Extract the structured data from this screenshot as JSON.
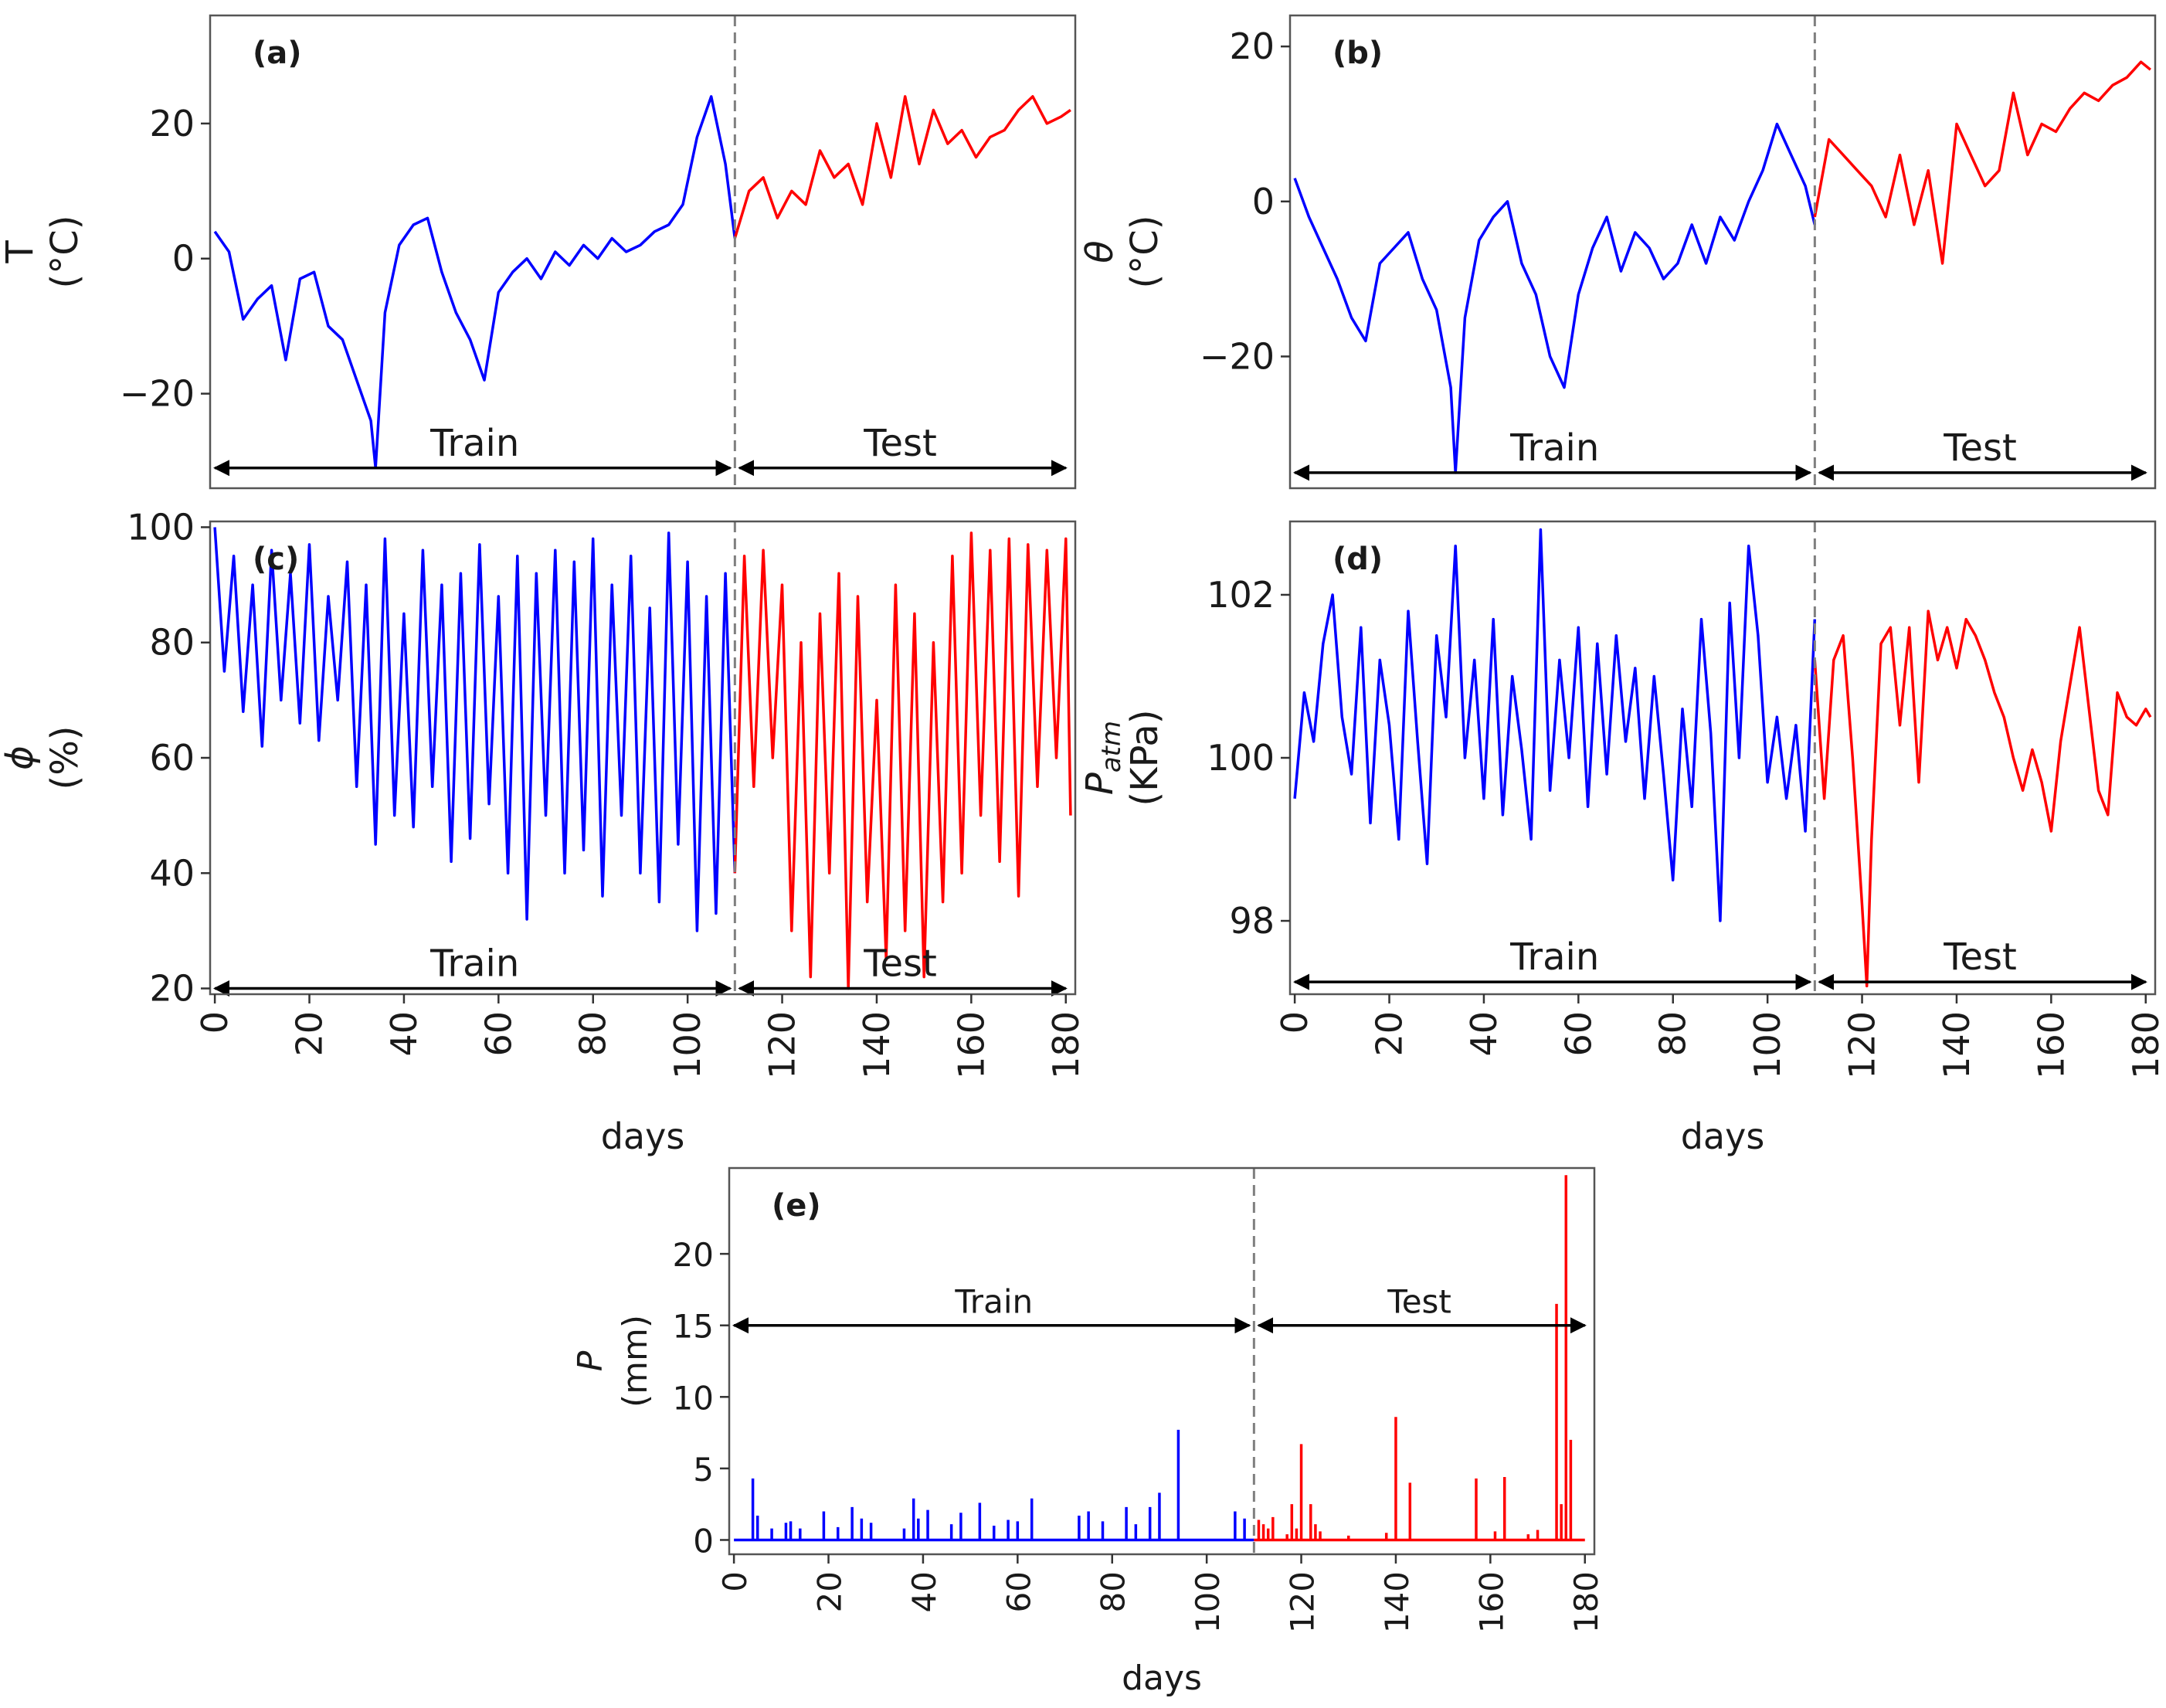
{
  "figure": {
    "colors": {
      "train": "#0000ff",
      "test": "#ff0000",
      "axis": "#555555",
      "split": "#7f7f7f",
      "arrow": "#000000"
    },
    "train_text": "Train",
    "test_text": "Test",
    "days_label": "days"
  },
  "chart_data": [
    {
      "id": "a",
      "tag": "(a)",
      "type": "line",
      "ylabel": "T",
      "yunit": "(°C)",
      "xlabel": "",
      "xlim": [
        -1,
        182
      ],
      "ylim": [
        -34,
        36
      ],
      "yticks": [
        -20,
        0,
        20
      ],
      "ytick_labels": [
        "−20",
        "0",
        "20"
      ],
      "xticks": [
        0,
        20,
        40,
        60,
        80,
        100,
        120,
        140,
        160,
        180
      ],
      "split_day": 110,
      "arrow_y": -31,
      "series": [
        {
          "name": "Train",
          "x": [
            0,
            3,
            6,
            9,
            12,
            15,
            18,
            21,
            24,
            27,
            30,
            33,
            34,
            36,
            39,
            42,
            45,
            48,
            51,
            54,
            57,
            60,
            63,
            66,
            69,
            72,
            75,
            78,
            81,
            84,
            87,
            90,
            93,
            96,
            99,
            102,
            105,
            108,
            110
          ],
          "values": [
            4,
            1,
            -9,
            -6,
            -4,
            -15,
            -3,
            -2,
            -10,
            -12,
            -18,
            -24,
            -31,
            -8,
            2,
            5,
            6,
            -2,
            -8,
            -12,
            -18,
            -5,
            -2,
            0,
            -3,
            1,
            -1,
            2,
            0,
            3,
            1,
            2,
            4,
            5,
            8,
            18,
            24,
            14,
            3
          ]
        },
        {
          "name": "Test",
          "x": [
            110,
            113,
            116,
            119,
            122,
            125,
            128,
            131,
            134,
            137,
            140,
            143,
            146,
            149,
            152,
            155,
            158,
            161,
            164,
            167,
            170,
            173,
            176,
            179,
            181
          ],
          "values": [
            3,
            10,
            12,
            6,
            10,
            8,
            16,
            12,
            14,
            8,
            20,
            12,
            24,
            14,
            22,
            17,
            19,
            15,
            18,
            19,
            22,
            24,
            20,
            21,
            22
          ]
        }
      ]
    },
    {
      "id": "b",
      "tag": "(b)",
      "type": "line",
      "ylabel": "θ",
      "yunit": "(°C)",
      "xlabel": "",
      "xlim": [
        -1,
        182
      ],
      "ylim": [
        -37,
        24
      ],
      "yticks": [
        -20,
        0,
        20
      ],
      "ytick_labels": [
        "−20",
        "0",
        "20"
      ],
      "xticks": [
        0,
        20,
        40,
        60,
        80,
        100,
        120,
        140,
        160,
        180
      ],
      "split_day": 110,
      "arrow_y": -35,
      "series": [
        {
          "name": "Train",
          "x": [
            0,
            3,
            6,
            9,
            12,
            15,
            18,
            21,
            24,
            27,
            30,
            33,
            34,
            36,
            39,
            42,
            45,
            48,
            51,
            54,
            57,
            60,
            63,
            66,
            69,
            72,
            75,
            78,
            81,
            84,
            87,
            90,
            93,
            96,
            99,
            102,
            105,
            108,
            110
          ],
          "values": [
            3,
            -2,
            -6,
            -10,
            -15,
            -18,
            -8,
            -6,
            -4,
            -10,
            -14,
            -24,
            -35,
            -15,
            -5,
            -2,
            0,
            -8,
            -12,
            -20,
            -24,
            -12,
            -6,
            -2,
            -9,
            -4,
            -6,
            -10,
            -8,
            -3,
            -8,
            -2,
            -5,
            0,
            4,
            10,
            6,
            2,
            -3
          ]
        },
        {
          "name": "Test",
          "x": [
            110,
            113,
            116,
            119,
            122,
            125,
            128,
            131,
            134,
            137,
            140,
            143,
            146,
            149,
            152,
            155,
            158,
            161,
            164,
            167,
            170,
            173,
            176,
            179,
            181
          ],
          "values": [
            -2,
            8,
            6,
            4,
            2,
            -2,
            6,
            -3,
            4,
            -8,
            10,
            6,
            2,
            4,
            14,
            6,
            10,
            9,
            12,
            14,
            13,
            15,
            16,
            18,
            17
          ]
        }
      ]
    },
    {
      "id": "c",
      "tag": "(c)",
      "type": "line",
      "ylabel": "ϕ",
      "yunit": "(%)",
      "xlabel": "days",
      "xlim": [
        -1,
        182
      ],
      "ylim": [
        19,
        101
      ],
      "yticks": [
        20,
        40,
        60,
        80,
        100
      ],
      "ytick_labels": [
        "20",
        "40",
        "60",
        "80",
        "100"
      ],
      "xticks": [
        0,
        20,
        40,
        60,
        80,
        100,
        120,
        140,
        160,
        180
      ],
      "split_day": 110,
      "arrow_y": 20,
      "series": [
        {
          "name": "Train",
          "x": [
            0,
            2,
            4,
            6,
            8,
            10,
            12,
            14,
            16,
            18,
            20,
            22,
            24,
            26,
            28,
            30,
            32,
            34,
            36,
            38,
            40,
            42,
            44,
            46,
            48,
            50,
            52,
            54,
            56,
            58,
            60,
            62,
            64,
            66,
            68,
            70,
            72,
            74,
            76,
            78,
            80,
            82,
            84,
            86,
            88,
            90,
            92,
            94,
            96,
            98,
            100,
            102,
            104,
            106,
            108,
            110
          ],
          "values": [
            100,
            75,
            95,
            68,
            90,
            62,
            96,
            70,
            92,
            66,
            97,
            63,
            88,
            70,
            94,
            55,
            90,
            45,
            98,
            50,
            85,
            48,
            96,
            55,
            90,
            42,
            92,
            46,
            97,
            52,
            88,
            40,
            95,
            32,
            92,
            50,
            96,
            40,
            94,
            44,
            98,
            36,
            90,
            50,
            95,
            40,
            86,
            35,
            99,
            45,
            94,
            30,
            88,
            33,
            92,
            40
          ]
        },
        {
          "name": "Test",
          "x": [
            110,
            112,
            114,
            116,
            118,
            120,
            122,
            124,
            126,
            128,
            130,
            132,
            134,
            136,
            138,
            140,
            142,
            144,
            146,
            148,
            150,
            152,
            154,
            156,
            158,
            160,
            162,
            164,
            166,
            168,
            170,
            172,
            174,
            176,
            178,
            180,
            181
          ],
          "values": [
            40,
            95,
            55,
            96,
            60,
            90,
            30,
            80,
            22,
            85,
            40,
            92,
            20,
            88,
            35,
            70,
            25,
            90,
            30,
            85,
            22,
            80,
            35,
            95,
            40,
            99,
            50,
            96,
            42,
            98,
            36,
            97,
            55,
            96,
            60,
            98,
            50
          ]
        }
      ]
    },
    {
      "id": "d",
      "tag": "(d)",
      "type": "line",
      "ylabel": "P",
      "ylabel_sub": "atm",
      "yunit": "(KPa)",
      "xlabel": "days",
      "xlim": [
        -1,
        182
      ],
      "ylim": [
        97.1,
        102.9
      ],
      "yticks": [
        98,
        100,
        102
      ],
      "ytick_labels": [
        "98",
        "100",
        "102"
      ],
      "xticks": [
        0,
        20,
        40,
        60,
        80,
        100,
        120,
        140,
        160,
        180
      ],
      "split_day": 110,
      "arrow_y": 97.25,
      "series": [
        {
          "name": "Train",
          "x": [
            0,
            2,
            4,
            6,
            8,
            10,
            12,
            14,
            16,
            18,
            20,
            22,
            24,
            26,
            28,
            30,
            32,
            34,
            36,
            38,
            40,
            42,
            44,
            46,
            48,
            50,
            52,
            54,
            56,
            58,
            60,
            62,
            64,
            66,
            68,
            70,
            72,
            74,
            76,
            78,
            80,
            82,
            84,
            86,
            88,
            90,
            92,
            94,
            96,
            98,
            100,
            102,
            104,
            106,
            108,
            110
          ],
          "values": [
            99.5,
            100.8,
            100.2,
            101.4,
            102,
            100.5,
            99.8,
            101.6,
            99.2,
            101.2,
            100.4,
            99,
            101.8,
            100.2,
            98.7,
            101.5,
            100.5,
            102.6,
            100,
            101.2,
            99.5,
            101.7,
            99.3,
            101,
            100.1,
            99,
            102.8,
            99.6,
            101.2,
            100,
            101.6,
            99.4,
            101.4,
            99.8,
            101.5,
            100.2,
            101.1,
            99.5,
            101,
            99.8,
            98.5,
            100.6,
            99.4,
            101.7,
            100.3,
            98,
            101.9,
            100,
            102.6,
            101.5,
            99.7,
            100.5,
            99.5,
            100.4,
            99.1,
            101.7
          ]
        },
        {
          "name": "Test",
          "x": [
            110,
            112,
            114,
            116,
            118,
            120,
            121,
            122,
            124,
            126,
            128,
            130,
            132,
            134,
            136,
            138,
            140,
            142,
            144,
            146,
            148,
            150,
            152,
            154,
            156,
            158,
            160,
            162,
            164,
            166,
            168,
            170,
            172,
            174,
            176,
            178,
            180,
            181
          ],
          "values": [
            101.2,
            99.5,
            101.2,
            101.5,
            100,
            98.2,
            97.2,
            99,
            101.4,
            101.6,
            100.4,
            101.6,
            99.7,
            101.8,
            101.2,
            101.6,
            101.1,
            101.7,
            101.5,
            101.2,
            100.8,
            100.5,
            100,
            99.6,
            100.1,
            99.7,
            99.1,
            100.2,
            100.9,
            101.6,
            100.6,
            99.6,
            99.3,
            100.8,
            100.5,
            100.4,
            100.6,
            100.5
          ]
        }
      ]
    },
    {
      "id": "e",
      "tag": "(e)",
      "type": "line",
      "ylabel": "P",
      "yunit": "(mm)",
      "xlabel": "days",
      "xlim": [
        -1,
        182
      ],
      "ylim": [
        -1,
        26
      ],
      "yticks": [
        0,
        5,
        10,
        15,
        20
      ],
      "ytick_labels": [
        "0",
        "5",
        "10",
        "15",
        "20"
      ],
      "xticks": [
        0,
        20,
        40,
        60,
        80,
        100,
        120,
        140,
        160,
        180
      ],
      "split_day": 110,
      "arrow_y": 15,
      "series": [
        {
          "name": "Train",
          "kind": "spikes",
          "x": [
            4,
            5,
            8,
            11,
            12,
            14,
            19,
            22,
            25,
            27,
            29,
            36,
            38,
            39,
            41,
            46,
            48,
            52,
            55,
            58,
            60,
            63,
            73,
            75,
            78,
            83,
            85,
            88,
            90,
            94,
            106,
            108
          ],
          "values": [
            4.3,
            1.7,
            0.8,
            1.2,
            1.3,
            0.8,
            2,
            0.9,
            2.3,
            1.5,
            1.2,
            0.8,
            2.9,
            1.5,
            2.1,
            1.1,
            1.9,
            2.6,
            1.0,
            1.4,
            1.3,
            2.9,
            1.7,
            2,
            1.3,
            2.3,
            1.1,
            2.3,
            3.3,
            7.7,
            2,
            1.5
          ],
          "baseline_end": 110
        },
        {
          "name": "Test",
          "kind": "spikes",
          "x": [
            111,
            112,
            113,
            114,
            117,
            118,
            119,
            120,
            122,
            123,
            124,
            130,
            138,
            140,
            143,
            157,
            161,
            163,
            168,
            170,
            174,
            175,
            176,
            177
          ],
          "values": [
            1.4,
            1.1,
            0.8,
            1.6,
            0.4,
            2.5,
            0.8,
            6.7,
            2.5,
            1.1,
            0.6,
            0.3,
            0.5,
            8.6,
            4,
            4.3,
            0.6,
            4.4,
            0.4,
            0.7,
            16.5,
            2.5,
            25.5,
            7
          ],
          "baseline_start": 110,
          "baseline_end": 180
        }
      ]
    }
  ]
}
